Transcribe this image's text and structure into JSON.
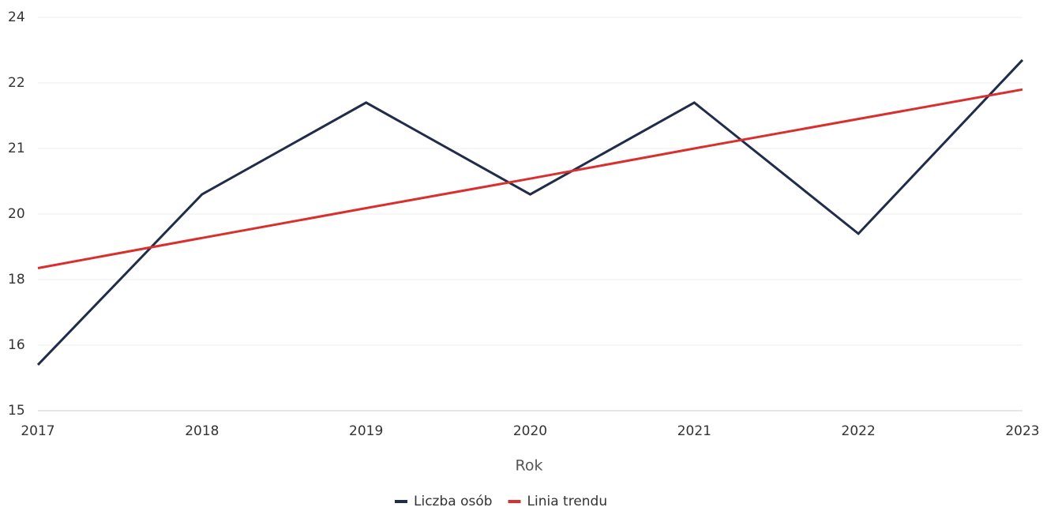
{
  "chart_data": {
    "type": "line",
    "x_label": "Rok",
    "categories": [
      "2017",
      "2018",
      "2019",
      "2020",
      "2021",
      "2022",
      "2023"
    ],
    "series": [
      {
        "name": "Liczba osób",
        "color": "#1f2d4a",
        "values": [
          15.7,
          20.3,
          21.7,
          20.3,
          21.7,
          19.4,
          22.7
        ]
      },
      {
        "name": "Linia trendu",
        "color": "#d9302f",
        "values": [
          18.35,
          19.27,
          20.09,
          20.54,
          21.0,
          21.45,
          21.9
        ]
      }
    ],
    "ylim": [
      15,
      24
    ],
    "yticks": [
      15,
      16,
      18,
      20,
      21,
      22,
      24
    ],
    "grid": true,
    "legend": "bottom"
  }
}
